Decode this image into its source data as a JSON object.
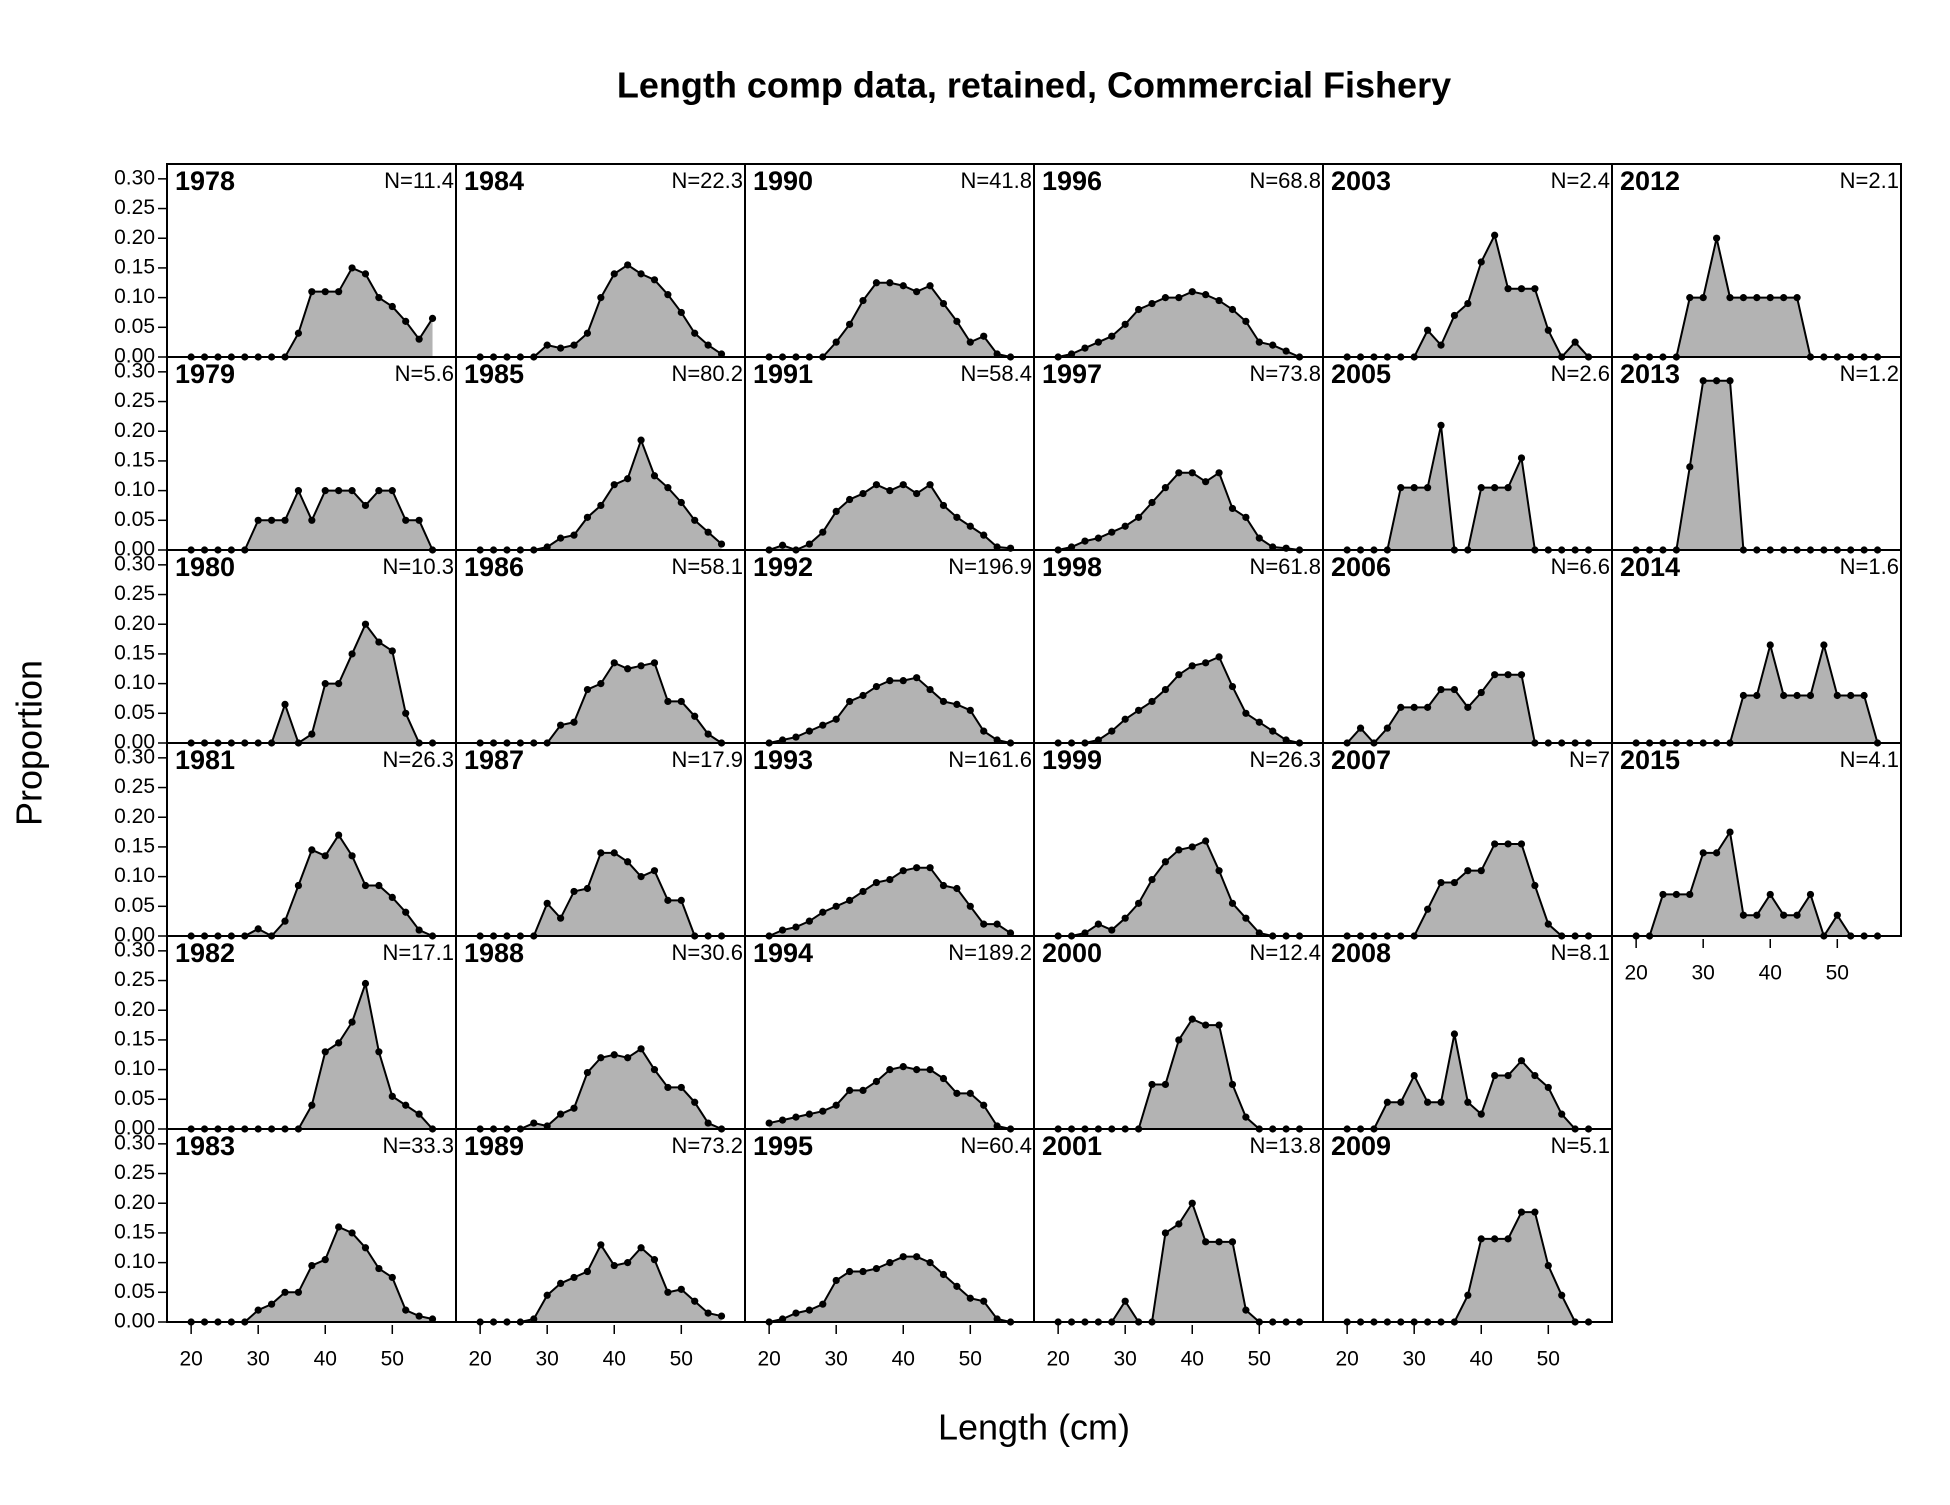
{
  "chart_data": {
    "type": "area",
    "title": "Length comp data, retained, Commercial Fishery",
    "xlabel": "Length (cm)",
    "ylabel": "Proportion",
    "x": [
      20,
      22,
      24,
      26,
      28,
      30,
      32,
      34,
      36,
      38,
      40,
      42,
      44,
      46,
      48,
      50,
      52,
      54,
      56
    ],
    "xlim": [
      16.4,
      59.5
    ],
    "ylim": [
      0,
      0.325
    ],
    "xticks": [
      20,
      30,
      40,
      50
    ],
    "yticks": [
      {
        "value": 0,
        "label": "0.00"
      },
      {
        "value": 0.05,
        "label": "0.05"
      },
      {
        "value": 0.1,
        "label": "0.10"
      },
      {
        "value": 0.15,
        "label": "0.15"
      },
      {
        "value": 0.2,
        "label": "0.20"
      },
      {
        "value": 0.25,
        "label": "0.25"
      },
      {
        "value": 0.3,
        "label": "0.30"
      }
    ],
    "color": "#b3b3b3",
    "line_color": "#000000",
    "panels": [
      {
        "name": "1978",
        "n_label": "N=11.4",
        "values": [
          0,
          0,
          0,
          0,
          0,
          0,
          0,
          0,
          0.04,
          0.11,
          0.11,
          0.11,
          0.15,
          0.14,
          0.1,
          0.085,
          0.06,
          0.03,
          0.065
        ]
      },
      {
        "name": "1979",
        "n_label": "N=5.6",
        "values": [
          0,
          0,
          0,
          0,
          0,
          0.05,
          0.05,
          0.05,
          0.1,
          0.05,
          0.1,
          0.1,
          0.1,
          0.075,
          0.1,
          0.1,
          0.05,
          0.05,
          0
        ]
      },
      {
        "name": "1980",
        "n_label": "N=10.3",
        "values": [
          0,
          0,
          0,
          0,
          0,
          0,
          0,
          0.065,
          0,
          0.015,
          0.1,
          0.1,
          0.15,
          0.2,
          0.17,
          0.155,
          0.05,
          0,
          0
        ]
      },
      {
        "name": "1981",
        "n_label": "N=26.3",
        "values": [
          0,
          0,
          0,
          0,
          0,
          0.012,
          0,
          0.025,
          0.085,
          0.145,
          0.135,
          0.17,
          0.135,
          0.085,
          0.085,
          0.065,
          0.04,
          0.01,
          0
        ]
      },
      {
        "name": "1982",
        "n_label": "N=17.1",
        "values": [
          0,
          0,
          0,
          0,
          0,
          0,
          0,
          0,
          0,
          0.04,
          0.13,
          0.145,
          0.18,
          0.245,
          0.13,
          0.055,
          0.04,
          0.025,
          0
        ]
      },
      {
        "name": "1983",
        "n_label": "N=33.3",
        "values": [
          0,
          0,
          0,
          0,
          0,
          0.02,
          0.03,
          0.05,
          0.05,
          0.095,
          0.105,
          0.16,
          0.15,
          0.125,
          0.09,
          0.075,
          0.02,
          0.01,
          0.005
        ]
      },
      {
        "name": "1984",
        "n_label": "N=22.3",
        "values": [
          0,
          0,
          0,
          0,
          0,
          0.02,
          0.015,
          0.02,
          0.04,
          0.1,
          0.14,
          0.155,
          0.14,
          0.13,
          0.105,
          0.075,
          0.04,
          0.02,
          0.005
        ]
      },
      {
        "name": "1985",
        "n_label": "N=80.2",
        "values": [
          0,
          0,
          0,
          0,
          0,
          0.005,
          0.02,
          0.025,
          0.055,
          0.075,
          0.11,
          0.12,
          0.185,
          0.125,
          0.105,
          0.08,
          0.05,
          0.03,
          0.01
        ]
      },
      {
        "name": "1986",
        "n_label": "N=58.1",
        "values": [
          0,
          0,
          0,
          0,
          0,
          0,
          0.03,
          0.035,
          0.09,
          0.1,
          0.135,
          0.125,
          0.13,
          0.135,
          0.07,
          0.07,
          0.045,
          0.015,
          0
        ]
      },
      {
        "name": "1987",
        "n_label": "N=17.9",
        "values": [
          0,
          0,
          0,
          0,
          0,
          0.055,
          0.03,
          0.075,
          0.08,
          0.14,
          0.14,
          0.125,
          0.1,
          0.11,
          0.06,
          0.06,
          0,
          0,
          0
        ]
      },
      {
        "name": "1988",
        "n_label": "N=30.6",
        "values": [
          0,
          0,
          0,
          0,
          0.01,
          0.005,
          0.025,
          0.035,
          0.095,
          0.12,
          0.125,
          0.12,
          0.135,
          0.1,
          0.07,
          0.07,
          0.045,
          0.01,
          0
        ]
      },
      {
        "name": "1989",
        "n_label": "N=73.2",
        "values": [
          0,
          0,
          0,
          0,
          0.005,
          0.045,
          0.065,
          0.075,
          0.085,
          0.13,
          0.095,
          0.1,
          0.125,
          0.105,
          0.05,
          0.055,
          0.035,
          0.015,
          0.01
        ]
      },
      {
        "name": "1990",
        "n_label": "N=41.8",
        "values": [
          0,
          0,
          0,
          0,
          0,
          0.025,
          0.055,
          0.095,
          0.125,
          0.125,
          0.12,
          0.11,
          0.12,
          0.09,
          0.06,
          0.025,
          0.035,
          0.005,
          0
        ]
      },
      {
        "name": "1991",
        "n_label": "N=58.4",
        "values": [
          0,
          0.008,
          0,
          0.01,
          0.03,
          0.065,
          0.085,
          0.095,
          0.11,
          0.1,
          0.11,
          0.095,
          0.11,
          0.075,
          0.055,
          0.04,
          0.025,
          0.005,
          0.003
        ]
      },
      {
        "name": "1992",
        "n_label": "N=196.9",
        "values": [
          0,
          0.005,
          0.01,
          0.02,
          0.03,
          0.04,
          0.07,
          0.08,
          0.095,
          0.105,
          0.105,
          0.11,
          0.09,
          0.07,
          0.065,
          0.055,
          0.02,
          0.005,
          0
        ]
      },
      {
        "name": "1993",
        "n_label": "N=161.6",
        "values": [
          0,
          0.01,
          0.015,
          0.025,
          0.04,
          0.05,
          0.06,
          0.075,
          0.09,
          0.095,
          0.11,
          0.115,
          0.115,
          0.085,
          0.08,
          0.05,
          0.02,
          0.02,
          0.005
        ]
      },
      {
        "name": "1994",
        "n_label": "N=189.2",
        "values": [
          0.01,
          0.015,
          0.02,
          0.025,
          0.03,
          0.04,
          0.065,
          0.065,
          0.08,
          0.1,
          0.105,
          0.1,
          0.1,
          0.085,
          0.06,
          0.06,
          0.04,
          0.005,
          0
        ]
      },
      {
        "name": "1995",
        "n_label": "N=60.4",
        "values": [
          0,
          0.005,
          0.015,
          0.02,
          0.03,
          0.07,
          0.085,
          0.085,
          0.09,
          0.1,
          0.11,
          0.11,
          0.1,
          0.08,
          0.06,
          0.04,
          0.035,
          0.005,
          0
        ]
      },
      {
        "name": "1996",
        "n_label": "N=68.8",
        "values": [
          0,
          0.005,
          0.015,
          0.025,
          0.035,
          0.055,
          0.08,
          0.09,
          0.1,
          0.1,
          0.11,
          0.105,
          0.095,
          0.08,
          0.06,
          0.025,
          0.02,
          0.01,
          0
        ]
      },
      {
        "name": "1997",
        "n_label": "N=73.8",
        "values": [
          0,
          0.005,
          0.015,
          0.02,
          0.03,
          0.04,
          0.055,
          0.08,
          0.105,
          0.13,
          0.13,
          0.115,
          0.13,
          0.07,
          0.055,
          0.02,
          0.005,
          0.003,
          0
        ]
      },
      {
        "name": "1998",
        "n_label": "N=61.8",
        "values": [
          0,
          0,
          0,
          0.005,
          0.02,
          0.04,
          0.055,
          0.07,
          0.09,
          0.115,
          0.13,
          0.135,
          0.145,
          0.095,
          0.05,
          0.035,
          0.02,
          0.005,
          0
        ]
      },
      {
        "name": "1999",
        "n_label": "N=26.3",
        "values": [
          0,
          0,
          0.005,
          0.02,
          0.01,
          0.03,
          0.055,
          0.095,
          0.125,
          0.145,
          0.15,
          0.16,
          0.11,
          0.055,
          0.03,
          0.005,
          0,
          0,
          0
        ]
      },
      {
        "name": "2000",
        "n_label": "N=12.4",
        "values": [
          0,
          0,
          0,
          0,
          0,
          0,
          0,
          0.075,
          0.075,
          0.15,
          0.185,
          0.175,
          0.175,
          0.075,
          0.02,
          0,
          0,
          0,
          0
        ]
      },
      {
        "name": "2001",
        "n_label": "N=13.8",
        "values": [
          0,
          0,
          0,
          0,
          0,
          0.035,
          0,
          0,
          0.15,
          0.165,
          0.2,
          0.135,
          0.135,
          0.135,
          0.02,
          0,
          0,
          0,
          0
        ]
      },
      {
        "name": "2003",
        "n_label": "N=2.4",
        "values": [
          0,
          0,
          0,
          0,
          0,
          0,
          0.045,
          0.02,
          0.07,
          0.09,
          0.16,
          0.205,
          0.115,
          0.115,
          0.115,
          0.045,
          0,
          0.025,
          0
        ]
      },
      {
        "name": "2005",
        "n_label": "N=2.6",
        "values": [
          0,
          0,
          0,
          0,
          0.105,
          0.105,
          0.105,
          0.21,
          0,
          0,
          0.105,
          0.105,
          0.105,
          0.155,
          0,
          0,
          0,
          0,
          0
        ]
      },
      {
        "name": "2006",
        "n_label": "N=6.6",
        "values": [
          0,
          0.025,
          0,
          0.025,
          0.06,
          0.06,
          0.06,
          0.09,
          0.09,
          0.06,
          0.085,
          0.115,
          0.115,
          0.115,
          0,
          0,
          0,
          0,
          0
        ]
      },
      {
        "name": "2007",
        "n_label": "N=7",
        "values": [
          0,
          0,
          0,
          0,
          0,
          0,
          0.045,
          0.09,
          0.09,
          0.11,
          0.11,
          0.155,
          0.155,
          0.155,
          0.085,
          0.02,
          0,
          0,
          0
        ]
      },
      {
        "name": "2008",
        "n_label": "N=8.1",
        "values": [
          0,
          0,
          0,
          0.045,
          0.045,
          0.09,
          0.045,
          0.045,
          0.16,
          0.045,
          0.025,
          0.09,
          0.09,
          0.115,
          0.09,
          0.07,
          0.025,
          0,
          0
        ]
      },
      {
        "name": "2009",
        "n_label": "N=5.1",
        "values": [
          0,
          0,
          0,
          0,
          0,
          0,
          0,
          0,
          0,
          0.045,
          0.14,
          0.14,
          0.14,
          0.185,
          0.185,
          0.095,
          0.045,
          0,
          0
        ]
      },
      {
        "name": "2012",
        "n_label": "N=2.1",
        "values": [
          0,
          0,
          0,
          0,
          0.1,
          0.1,
          0.2,
          0.1,
          0.1,
          0.1,
          0.1,
          0.1,
          0.1,
          0,
          0,
          0,
          0,
          0,
          0
        ]
      },
      {
        "name": "2013",
        "n_label": "N=1.2",
        "values": [
          0,
          0,
          0,
          0,
          0.14,
          0.285,
          0.285,
          0.285,
          0,
          0,
          0,
          0,
          0,
          0,
          0,
          0,
          0,
          0,
          0
        ]
      },
      {
        "name": "2014",
        "n_label": "N=1.6",
        "values": [
          0,
          0,
          0,
          0,
          0,
          0,
          0,
          0,
          0.08,
          0.08,
          0.165,
          0.08,
          0.08,
          0.08,
          0.165,
          0.08,
          0.08,
          0.08,
          0
        ]
      },
      {
        "name": "2015",
        "n_label": "N=4.1",
        "values": [
          0,
          0,
          0.07,
          0.07,
          0.07,
          0.14,
          0.14,
          0.175,
          0.035,
          0.035,
          0.07,
          0.035,
          0.035,
          0.07,
          0,
          0.035,
          0,
          0,
          0
        ]
      }
    ]
  }
}
